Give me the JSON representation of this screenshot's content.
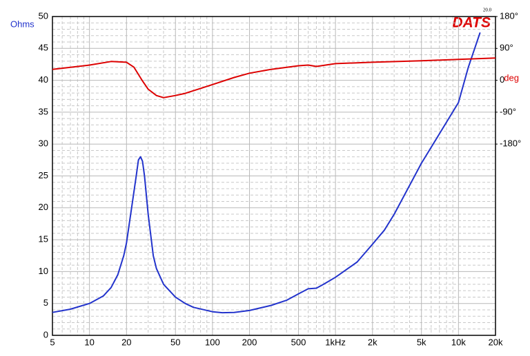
{
  "chart_data": {
    "type": "line",
    "y_label": "Ohms",
    "y_label_color": "#2233cc",
    "y2_label": "deg",
    "y2_label_color": "#dd0000",
    "logo": "DATS",
    "logo_color": "#dd0000",
    "version": "20.0",
    "xscale": "log",
    "grid": true,
    "xlim": [
      5,
      20000
    ],
    "xticks": [
      5,
      10,
      20,
      50,
      100,
      200,
      500,
      {
        "value": 1000,
        "label": "1kHz"
      },
      {
        "value": 2000,
        "label": "2k"
      },
      {
        "value": 5000,
        "label": "5k"
      },
      {
        "value": 10000,
        "label": "10k"
      },
      {
        "value": 20000,
        "label": "20k"
      }
    ],
    "x_minor_ticks": [
      6,
      7,
      8,
      9,
      30,
      40,
      60,
      70,
      80,
      90,
      300,
      400,
      600,
      700,
      800,
      900,
      3000,
      4000,
      6000,
      7000,
      8000,
      9000
    ],
    "ylim": [
      0,
      50
    ],
    "yticks": [
      0,
      5,
      10,
      15,
      20,
      25,
      30,
      35,
      40,
      45,
      50
    ],
    "y_minor_ticks": [
      1,
      2,
      3,
      4,
      6,
      7,
      8,
      9,
      11,
      12,
      13,
      14,
      16,
      17,
      18,
      19,
      21,
      22,
      23,
      24,
      26,
      27,
      28,
      29,
      31,
      32,
      33,
      34,
      36,
      37,
      38,
      39,
      41,
      42,
      43,
      44,
      46,
      47,
      48,
      49
    ],
    "y2lim": [
      -720,
      180
    ],
    "y2ticks": [
      {
        "value": 180,
        "label": "180°"
      },
      {
        "value": 90,
        "label": "90°"
      },
      0,
      {
        "value": -90,
        "label": "-90°"
      },
      {
        "value": -180,
        "label": "-180°"
      }
    ],
    "series": [
      {
        "color": "#2233cc",
        "x": [
          5,
          7,
          10,
          13,
          15,
          17,
          19,
          20,
          22,
          24,
          25,
          26,
          27,
          28,
          30,
          33,
          35,
          40,
          50,
          60,
          70,
          100,
          120,
          150,
          200,
          300,
          400,
          500,
          600,
          700,
          800,
          1000,
          1500,
          2000,
          2500,
          3000,
          5000,
          7000,
          10000,
          12000,
          15000
        ],
        "values": [
          3.6,
          4.1,
          5.0,
          6.2,
          7.5,
          9.5,
          12.5,
          14.5,
          20,
          25,
          27.5,
          28,
          27.3,
          25,
          19,
          12.5,
          10.5,
          8,
          6,
          5,
          4.4,
          3.7,
          3.55,
          3.6,
          3.9,
          4.7,
          5.5,
          6.5,
          7.3,
          7.4,
          8,
          9.1,
          11.5,
          14.3,
          16.5,
          19,
          27,
          31.6,
          36.5,
          42,
          47.5
        ]
      },
      {
        "color": "#dd0000",
        "axis": "y2",
        "x": [
          5,
          10,
          15,
          20,
          23,
          27,
          30,
          35,
          40,
          50,
          60,
          80,
          100,
          150,
          200,
          300,
          500,
          600,
          700,
          1000,
          2000,
          5000,
          10000,
          20000
        ],
        "values": [
          31,
          43,
          53,
          51,
          37,
          -2,
          -25,
          -43,
          -49,
          -43,
          -37,
          -23,
          -12,
          8,
          20,
          31,
          41,
          43,
          39,
          47,
          51,
          55,
          59,
          63
        ]
      }
    ]
  }
}
